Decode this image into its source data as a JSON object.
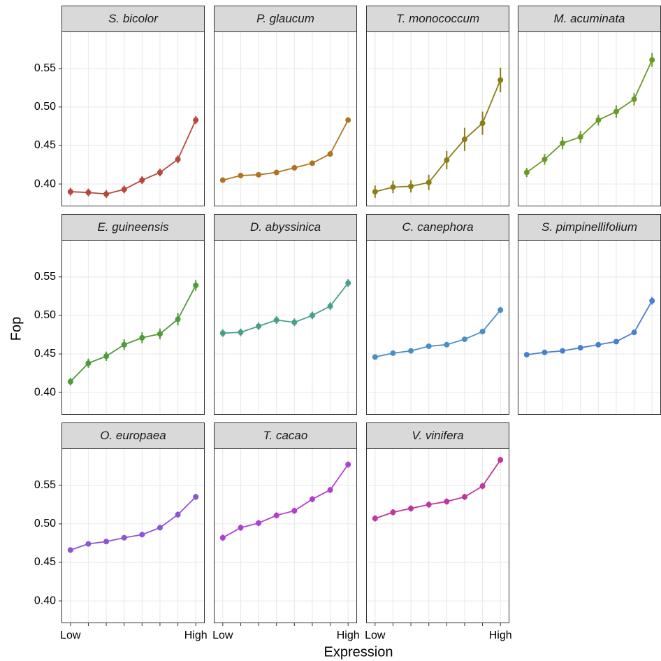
{
  "chart_data": {
    "type": "line",
    "y_label": "Fop",
    "x_label": "Expression",
    "categories": [
      "Low",
      null,
      null,
      null,
      null,
      null,
      null,
      "High"
    ],
    "ylim": [
      0.371,
      0.598
    ],
    "yticks": [
      {
        "value": 0.4,
        "label": "0.40"
      },
      {
        "value": 0.45,
        "label": "0.45"
      },
      {
        "value": 0.5,
        "label": "0.50"
      },
      {
        "value": 0.55,
        "label": "0.55"
      }
    ],
    "grid": true,
    "series": [
      {
        "name": "S. bicolor",
        "color": "#b5473e",
        "values": [
          0.39,
          0.389,
          0.387,
          0.393,
          0.405,
          0.415,
          0.432,
          0.483
        ],
        "errors": [
          0.005,
          0.005,
          0.005,
          0.005,
          0.005,
          0.005,
          0.005,
          0.005
        ]
      },
      {
        "name": "P. glaucum",
        "color": "#b07420",
        "values": [
          0.405,
          0.411,
          0.412,
          0.415,
          0.421,
          0.427,
          0.439,
          0.483
        ],
        "errors": [
          0.002,
          0.002,
          0.002,
          0.002,
          0.002,
          0.002,
          0.002,
          0.003
        ]
      },
      {
        "name": "T. monococcum",
        "color": "#8a7d1a",
        "values": [
          0.39,
          0.396,
          0.397,
          0.402,
          0.431,
          0.458,
          0.479,
          0.535
        ],
        "errors": [
          0.008,
          0.008,
          0.008,
          0.01,
          0.012,
          0.015,
          0.015,
          0.016
        ]
      },
      {
        "name": "M. acuminata",
        "color": "#6a9a26",
        "values": [
          0.415,
          0.432,
          0.453,
          0.461,
          0.483,
          0.494,
          0.51,
          0.561
        ],
        "errors": [
          0.006,
          0.007,
          0.008,
          0.008,
          0.007,
          0.008,
          0.008,
          0.009
        ]
      },
      {
        "name": "E. guineensis",
        "color": "#4f9a3a",
        "values": [
          0.414,
          0.438,
          0.447,
          0.462,
          0.471,
          0.476,
          0.495,
          0.539
        ],
        "errors": [
          0.005,
          0.006,
          0.006,
          0.007,
          0.007,
          0.007,
          0.008,
          0.007
        ]
      },
      {
        "name": "D. abyssinica",
        "color": "#4c9e8c",
        "values": [
          0.477,
          0.478,
          0.486,
          0.494,
          0.491,
          0.5,
          0.512,
          0.542
        ],
        "errors": [
          0.005,
          0.005,
          0.005,
          0.005,
          0.005,
          0.005,
          0.005,
          0.005
        ]
      },
      {
        "name": "C. canephora",
        "color": "#4a8fc4",
        "values": [
          0.446,
          0.451,
          0.454,
          0.46,
          0.462,
          0.469,
          0.479,
          0.507
        ],
        "errors": [
          0.003,
          0.003,
          0.003,
          0.003,
          0.003,
          0.003,
          0.003,
          0.004
        ]
      },
      {
        "name": "S. pimpinellifolium",
        "color": "#4a7fd0",
        "values": [
          0.449,
          0.452,
          0.454,
          0.458,
          0.462,
          0.466,
          0.478,
          0.519
        ],
        "errors": [
          0.003,
          0.003,
          0.003,
          0.003,
          0.003,
          0.003,
          0.003,
          0.005
        ]
      },
      {
        "name": "O. europaea",
        "color": "#8a55d6",
        "values": [
          0.466,
          0.474,
          0.477,
          0.482,
          0.486,
          0.495,
          0.512,
          0.535
        ],
        "errors": [
          0.003,
          0.003,
          0.003,
          0.003,
          0.003,
          0.003,
          0.004,
          0.004
        ]
      },
      {
        "name": "T. cacao",
        "color": "#b03ed0",
        "values": [
          0.482,
          0.495,
          0.501,
          0.511,
          0.517,
          0.532,
          0.544,
          0.577
        ],
        "errors": [
          0.004,
          0.004,
          0.004,
          0.004,
          0.004,
          0.004,
          0.004,
          0.004
        ]
      },
      {
        "name": "V. vinifera",
        "color": "#c0369a",
        "values": [
          0.507,
          0.515,
          0.52,
          0.525,
          0.529,
          0.535,
          0.549,
          0.583
        ],
        "errors": [
          0.004,
          0.004,
          0.004,
          0.004,
          0.004,
          0.004,
          0.004,
          0.004
        ]
      }
    ]
  }
}
